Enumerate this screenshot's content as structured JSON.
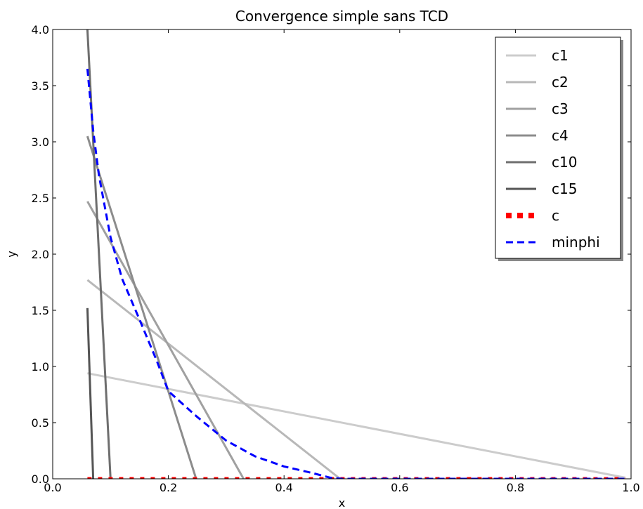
{
  "chart_data": {
    "type": "line",
    "title": "Convergence simple sans TCD",
    "xlabel": "x",
    "ylabel": "y",
    "xlim": [
      0.0,
      1.0
    ],
    "ylim": [
      0.0,
      4.0
    ],
    "xticks": [
      "0.0",
      "0.2",
      "0.4",
      "0.6",
      "0.8",
      "1.0"
    ],
    "yticks": [
      "0.0",
      "0.5",
      "1.0",
      "1.5",
      "2.0",
      "2.5",
      "3.0",
      "3.5",
      "4.0"
    ],
    "grid": false,
    "legend_position": "top-right",
    "series": [
      {
        "name": "c1",
        "color": "#cccccc",
        "style": "solid",
        "x": [
          0.06,
          0.99
        ],
        "y": [
          0.94,
          0.01
        ]
      },
      {
        "name": "c2",
        "color": "#b8b8b8",
        "style": "solid",
        "x": [
          0.06,
          0.497
        ],
        "y": [
          1.77,
          0.0
        ]
      },
      {
        "name": "c3",
        "color": "#a0a0a0",
        "style": "solid",
        "x": [
          0.06,
          0.33
        ],
        "y": [
          2.47,
          0.0
        ]
      },
      {
        "name": "c4",
        "color": "#8c8c8c",
        "style": "solid",
        "x": [
          0.06,
          0.248
        ],
        "y": [
          3.05,
          0.0
        ]
      },
      {
        "name": "c10",
        "color": "#6e6e6e",
        "style": "solid",
        "x": [
          0.06,
          0.1
        ],
        "y": [
          4.0,
          0.0
        ]
      },
      {
        "name": "c15",
        "color": "#555555",
        "style": "solid",
        "x": [
          0.06,
          0.07
        ],
        "y": [
          1.52,
          0.0
        ]
      },
      {
        "name": "c",
        "color": "#ff0000",
        "style": "dotted",
        "x": [
          0.06,
          0.99
        ],
        "y": [
          0.0,
          0.0
        ]
      },
      {
        "name": "minphi",
        "color": "#0000ff",
        "style": "dashed",
        "x": [
          0.06,
          0.07,
          0.08,
          0.1,
          0.12,
          0.15,
          0.18,
          0.2,
          0.25,
          0.3,
          0.35,
          0.4,
          0.45,
          0.48,
          0.5,
          0.6,
          0.7,
          0.8,
          0.9,
          0.99
        ],
        "y": [
          3.65,
          3.1,
          2.7,
          2.15,
          1.78,
          1.42,
          1.05,
          0.78,
          0.55,
          0.34,
          0.2,
          0.11,
          0.05,
          0.01,
          0.0,
          0.0,
          0.0,
          0.0,
          0.0,
          0.0
        ]
      }
    ]
  }
}
